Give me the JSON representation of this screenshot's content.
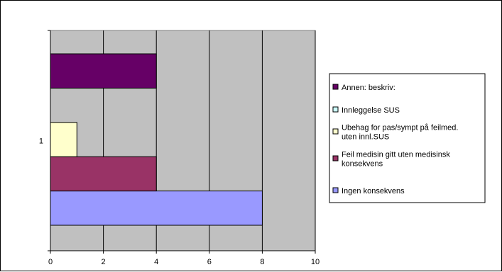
{
  "chart_data": {
    "type": "bar",
    "orientation": "horizontal",
    "categories": [
      "1"
    ],
    "series": [
      {
        "name": "Ingen konsekvens",
        "values": [
          8
        ],
        "color": "#9999ff"
      },
      {
        "name": "Feil medisin gitt uten medisinsk konsekvens",
        "values": [
          4
        ],
        "color": "#993366"
      },
      {
        "name": "Ubehag for pas/sympt på feilmed. uten innl.SUS",
        "values": [
          1
        ],
        "color": "#ffffcc"
      },
      {
        "name": "Innleggelse SUS",
        "values": [
          0
        ],
        "color": "#ccffff"
      },
      {
        "name": "Annen: beskriv:",
        "values": [
          4
        ],
        "color": "#660066"
      }
    ],
    "xlim": [
      0,
      10
    ],
    "xticks": [
      "0",
      "2",
      "4",
      "6",
      "8",
      "10"
    ],
    "grid": true,
    "legend_position": "right",
    "plot_background": "#c0c0c0",
    "title": "",
    "xlabel": "",
    "ylabel": ""
  }
}
